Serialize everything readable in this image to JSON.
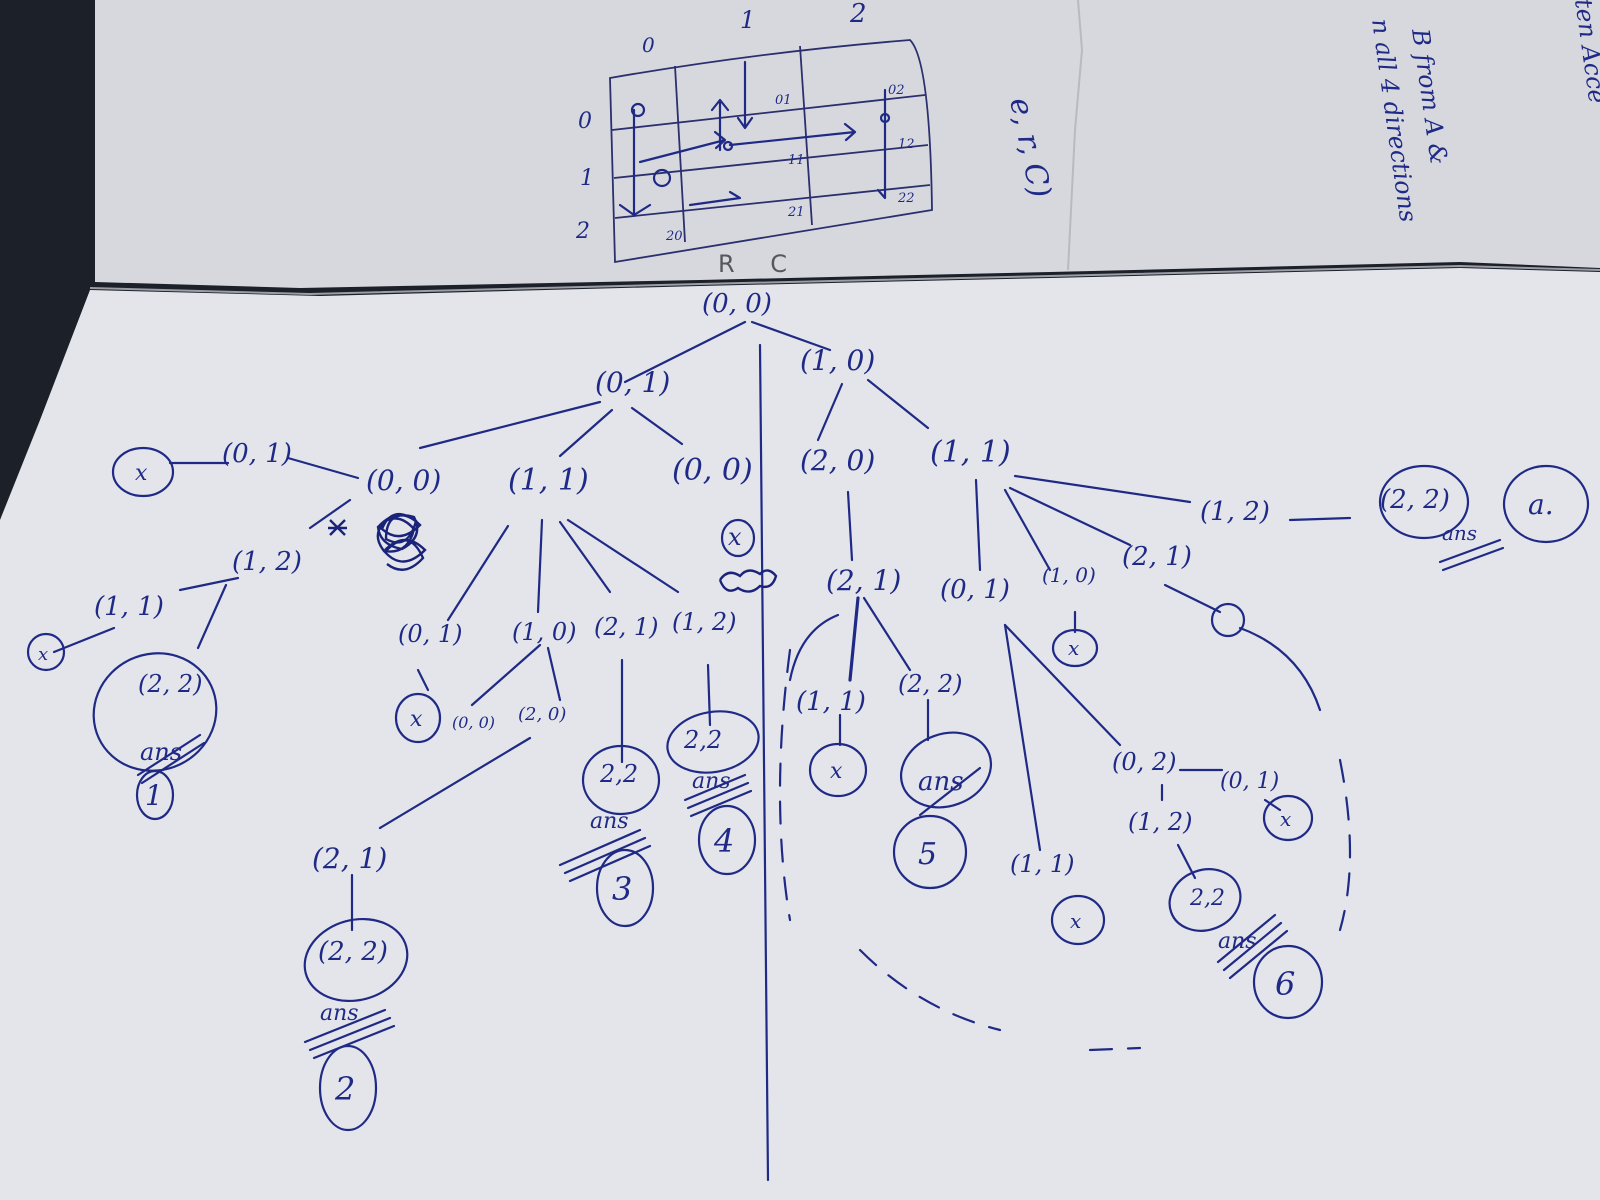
{
  "upper_page": {
    "grid": {
      "col_headers": [
        "0",
        "1",
        "2"
      ],
      "row_headers": [
        "0",
        "1",
        "2"
      ],
      "cell_labels": [
        "01",
        "02",
        "11",
        "12",
        "21",
        "22",
        "20"
      ],
      "caption": "R C"
    },
    "fragments": [
      "e, r, C)",
      "B from A &",
      "n all 4 directions",
      "ten Acce"
    ]
  },
  "tree": {
    "root": "(0, 0)",
    "left": "(0, 1)",
    "right": "(1, 0)",
    "left_children": [
      "(0, 0)",
      "(1, 1)",
      "(0, 0)"
    ],
    "right_children": [
      "(2, 0)",
      "(1, 1)"
    ],
    "far_left_chain": [
      "(0, 1)",
      "(1, 2)",
      "(1, 1)",
      "(2, 2)"
    ],
    "mid_children": [
      "(0, 1)",
      "(1, 0)",
      "(2, 1)",
      "(1, 2)"
    ],
    "mid_grandchildren": [
      "(0, 0)",
      "(2, 0)"
    ],
    "deep_chain": [
      "(2, 1)",
      "(2, 2)"
    ],
    "mid_answers": [
      "2,2",
      "2,2"
    ],
    "right_sub": [
      "(2, 1)",
      "(1, 1)",
      "(2, 2)"
    ],
    "right_children_2": [
      "(0, 1)",
      "(1, 0)",
      "(2, 1)",
      "(1, 2)",
      "(2, 2)"
    ],
    "right_deep": [
      "(0, 2)",
      "(0, 1)",
      "(1, 2)",
      "(1, 1)",
      "2,2"
    ],
    "cross_mark": "x",
    "ans_label": "ans",
    "answer_counts": [
      "1",
      "2",
      "3",
      "4",
      "5",
      "6"
    ],
    "final_label": "a."
  }
}
